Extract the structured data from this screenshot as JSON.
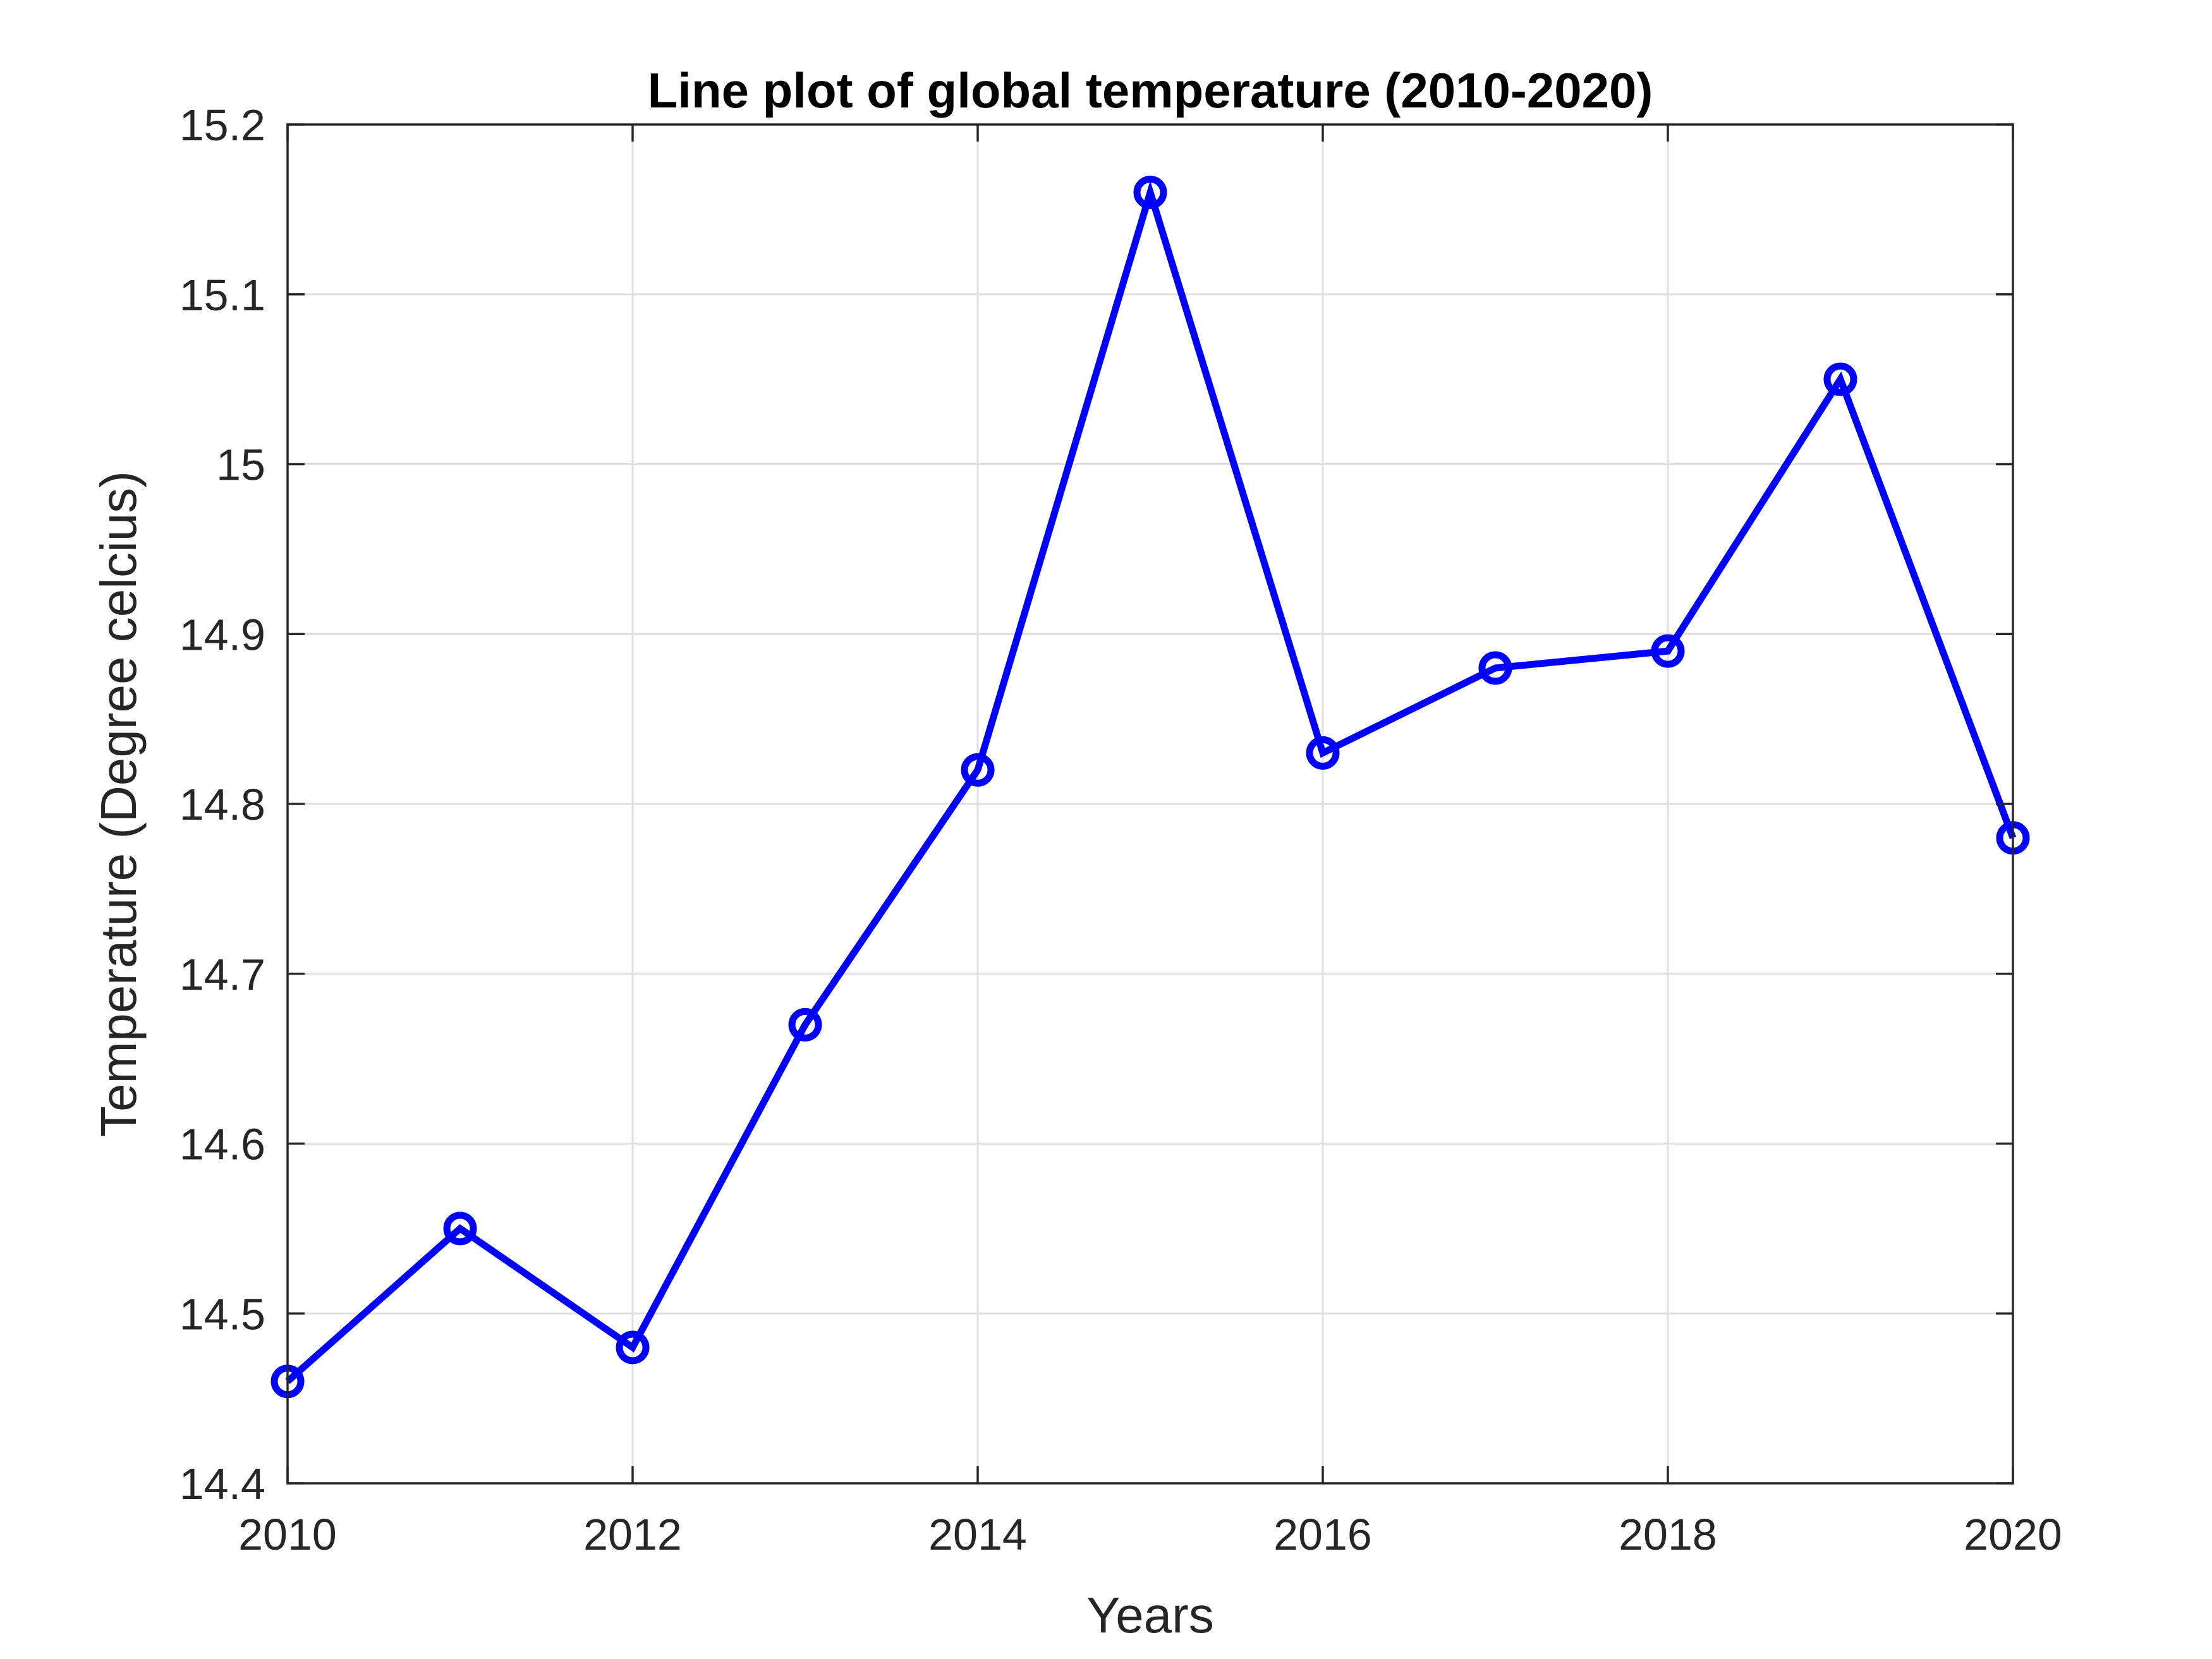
{
  "chart_data": {
    "type": "line",
    "title": "Line plot of global temperature (2010-2020)",
    "xlabel": "Years",
    "ylabel": "Temperature (Degree celcius)",
    "xlim": [
      2010,
      2020
    ],
    "ylim": [
      14.4,
      15.2
    ],
    "xticks": [
      "2010",
      "2012",
      "2014",
      "2016",
      "2018",
      "2020"
    ],
    "yticks": [
      "14.4",
      "14.5",
      "14.6",
      "14.7",
      "14.8",
      "14.9",
      "15",
      "15.1",
      "15.2"
    ],
    "grid": true,
    "series": [
      {
        "color": "#0000ff",
        "marker": "circle",
        "x": [
          2010,
          2011,
          2012,
          2013,
          2014,
          2015,
          2016,
          2017,
          2018,
          2019,
          2020
        ],
        "y": [
          14.46,
          14.55,
          14.48,
          14.67,
          14.82,
          15.16,
          14.83,
          14.88,
          14.89,
          15.05,
          14.78
        ]
      }
    ]
  }
}
